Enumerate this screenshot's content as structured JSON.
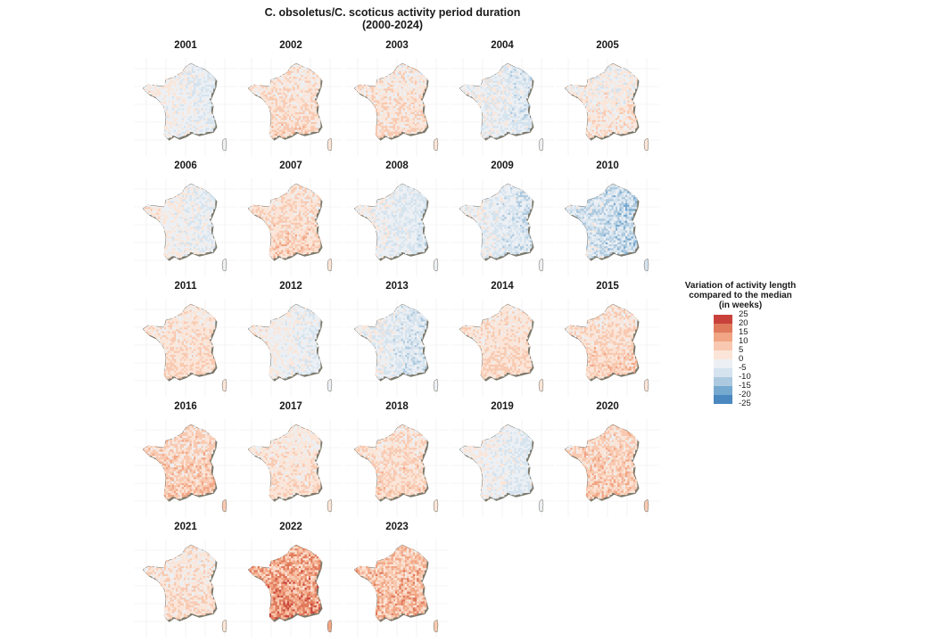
{
  "title": {
    "line1": "C. obsoletus/C. scoticus activity period duration",
    "line2": "(2000-2024)"
  },
  "panels": [
    {
      "year": "2001",
      "mean": -1.5,
      "spread": 5
    },
    {
      "year": "2002",
      "mean": 3,
      "spread": 6
    },
    {
      "year": "2003",
      "mean": 2,
      "spread": 6
    },
    {
      "year": "2004",
      "mean": -3,
      "spread": 6
    },
    {
      "year": "2005",
      "mean": 0,
      "spread": 6
    },
    {
      "year": "2006",
      "mean": -1,
      "spread": 5
    },
    {
      "year": "2007",
      "mean": 4,
      "spread": 6
    },
    {
      "year": "2008",
      "mean": -3,
      "spread": 5
    },
    {
      "year": "2009",
      "mean": -4,
      "spread": 6
    },
    {
      "year": "2010",
      "mean": -7,
      "spread": 8
    },
    {
      "year": "2011",
      "mean": 3,
      "spread": 5
    },
    {
      "year": "2012",
      "mean": -1,
      "spread": 5
    },
    {
      "year": "2013",
      "mean": -4,
      "spread": 6
    },
    {
      "year": "2014",
      "mean": 3,
      "spread": 5
    },
    {
      "year": "2015",
      "mean": 4,
      "spread": 6
    },
    {
      "year": "2016",
      "mean": 5,
      "spread": 7
    },
    {
      "year": "2017",
      "mean": 2,
      "spread": 5
    },
    {
      "year": "2018",
      "mean": 4,
      "spread": 6
    },
    {
      "year": "2019",
      "mean": -2,
      "spread": 5
    },
    {
      "year": "2020",
      "mean": 5,
      "spread": 7
    },
    {
      "year": "2021",
      "mean": 2,
      "spread": 6
    },
    {
      "year": "2022",
      "mean": 12,
      "spread": 9
    },
    {
      "year": "2023",
      "mean": 8,
      "spread": 8
    }
  ],
  "legend": {
    "title_lines": [
      "Variation of activity length",
      "compared to the median",
      "(in weeks)"
    ],
    "labels": [
      "25",
      "20",
      "15",
      "10",
      "5",
      "0",
      "-5",
      "-10",
      "-15",
      "-20",
      "-25"
    ],
    "bins": [
      {
        "color": "#c8423b",
        "lo": 20,
        "hi": 25
      },
      {
        "color": "#e07a5c",
        "lo": 15,
        "hi": 20
      },
      {
        "color": "#f1a584",
        "lo": 10,
        "hi": 15
      },
      {
        "color": "#f8c9b0",
        "lo": 5,
        "hi": 10
      },
      {
        "color": "#fbe5d8",
        "lo": 0,
        "hi": 5
      },
      {
        "color": "#ecf0f4",
        "lo": -5,
        "hi": 0
      },
      {
        "color": "#d5e3ee",
        "lo": -10,
        "hi": -5
      },
      {
        "color": "#acc9df",
        "lo": -15,
        "hi": -10
      },
      {
        "color": "#76a9d0",
        "lo": -20,
        "hi": -15
      },
      {
        "color": "#4a88bf",
        "lo": -25,
        "hi": -20
      }
    ]
  }
}
